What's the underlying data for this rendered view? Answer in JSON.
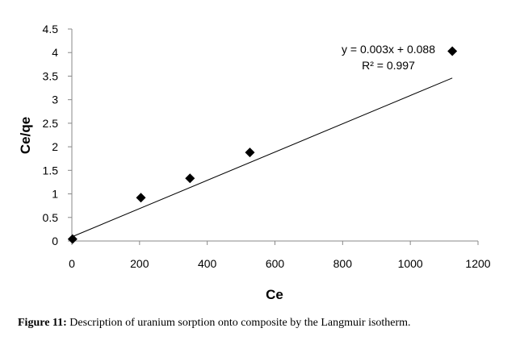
{
  "chart_data": {
    "type": "scatter",
    "xlabel": "Ce",
    "ylabel": "Ce/qe",
    "xlim": [
      0,
      1200
    ],
    "ylim": [
      0,
      4.5
    ],
    "x_ticks": [
      "0",
      "200",
      "400",
      "600",
      "800",
      "1000",
      "1200"
    ],
    "y_ticks": [
      "0",
      "0.5",
      "1",
      "1.5",
      "2",
      "2.5",
      "3",
      "3.5",
      "4",
      "4.5"
    ],
    "series": [
      {
        "marker": "diamond",
        "color": "#000000",
        "x": [
          2,
          204,
          349,
          526,
          1124
        ],
        "y": [
          0.04,
          0.92,
          1.33,
          1.88,
          4.03
        ]
      }
    ],
    "trendline": {
      "type": "linear",
      "slope": 0.003,
      "intercept": 0.088,
      "x_range": [
        0,
        1124
      ],
      "equation": "y = 0.003x + 0.088",
      "r_squared": "R² = 0.997"
    },
    "grid": false,
    "legend": "none"
  },
  "caption": {
    "label": "Figure 11:",
    "text": " Description of uranium sorption onto composite by the Langmuir isotherm."
  }
}
